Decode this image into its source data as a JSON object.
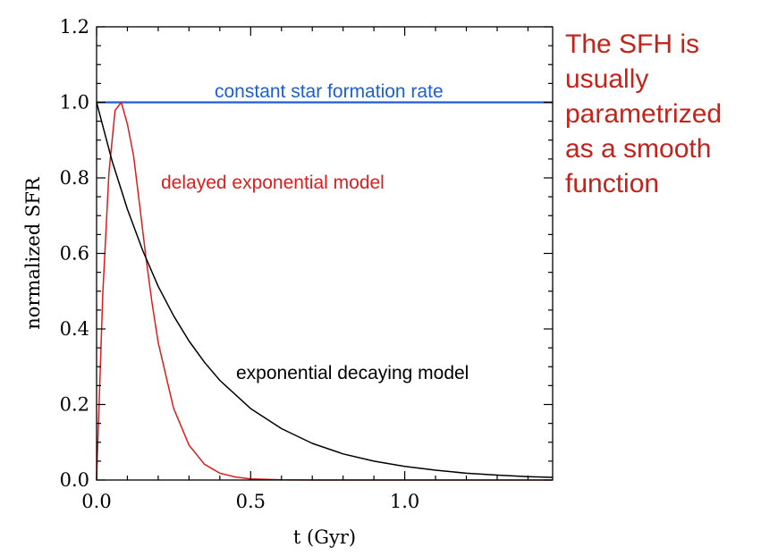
{
  "chart_data": {
    "type": "line",
    "xlabel": "t (Gyr)",
    "ylabel": "normalized SFR",
    "xlim": [
      0.0,
      1.48
    ],
    "ylim": [
      0.0,
      1.2
    ],
    "xticks": [
      0.0,
      0.5,
      1.0
    ],
    "xtick_labels": [
      "0.0",
      "0.5",
      "1.0"
    ],
    "yticks": [
      0.0,
      0.2,
      0.4,
      0.6,
      0.8,
      1.0,
      1.2
    ],
    "ytick_labels": [
      "0.0",
      "0.2",
      "0.4",
      "0.6",
      "0.8",
      "1.0",
      "1.2"
    ],
    "grid": false,
    "series": [
      {
        "name": "constant star formation rate",
        "color": "#1a5fd6",
        "x": [
          0.0,
          1.48
        ],
        "y": [
          1.0,
          1.0
        ]
      },
      {
        "name": "delayed exponential model",
        "color": "#e01b1b",
        "x": [
          0.0,
          0.02,
          0.04,
          0.06,
          0.08,
          0.1,
          0.12,
          0.14,
          0.16,
          0.18,
          0.2,
          0.25,
          0.3,
          0.35,
          0.4,
          0.45,
          0.5,
          0.6,
          0.7,
          0.8,
          0.9,
          1.0,
          1.2,
          1.48
        ],
        "y": [
          0.0,
          0.491,
          0.813,
          0.979,
          1.0,
          0.942,
          0.858,
          0.727,
          0.591,
          0.469,
          0.364,
          0.19,
          0.092,
          0.042,
          0.018,
          0.008,
          0.003,
          0.0005,
          0.0001,
          0.0,
          0.0,
          0.0,
          0.0,
          0.0
        ]
      },
      {
        "name": "exponential decaying model",
        "color": "#000000",
        "x": [
          0.0,
          0.05,
          0.1,
          0.15,
          0.2,
          0.25,
          0.3,
          0.35,
          0.4,
          0.5,
          0.6,
          0.7,
          0.8,
          0.9,
          1.0,
          1.1,
          1.2,
          1.3,
          1.4,
          1.48
        ],
        "y": [
          1.0,
          0.846,
          0.717,
          0.607,
          0.513,
          0.435,
          0.368,
          0.312,
          0.264,
          0.189,
          0.136,
          0.097,
          0.069,
          0.05,
          0.036,
          0.026,
          0.018,
          0.013,
          0.009,
          0.007
        ]
      }
    ],
    "annotations": [
      {
        "text": "constant star formation rate",
        "color": "#1a5fd6"
      },
      {
        "text": "delayed exponential model",
        "color": "#e01b1b"
      },
      {
        "text": "exponential decaying model",
        "color": "#000000"
      }
    ]
  },
  "side_note": {
    "lines": [
      "The SFH is",
      "usually",
      "parametrized",
      "as a smooth",
      "function"
    ],
    "color": "#c0241c"
  }
}
